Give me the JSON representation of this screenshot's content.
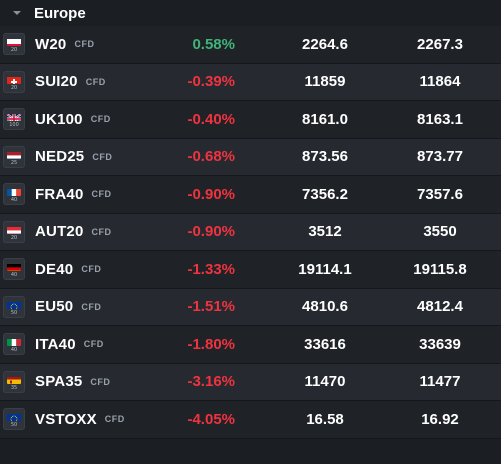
{
  "header": {
    "region": "Europe"
  },
  "rows": [
    {
      "symbol": "W20",
      "type": "CFD",
      "change": "0.58%",
      "direction": "up",
      "bid": "2264.6",
      "ask": "2267.3",
      "flag": "poland",
      "flag_num": "20"
    },
    {
      "symbol": "SUI20",
      "type": "CFD",
      "change": "-0.39%",
      "direction": "down",
      "bid": "11859",
      "ask": "11864",
      "flag": "switzerland",
      "flag_num": "20"
    },
    {
      "symbol": "UK100",
      "type": "CFD",
      "change": "-0.40%",
      "direction": "down",
      "bid": "8161.0",
      "ask": "8163.1",
      "flag": "uk",
      "flag_num": "100"
    },
    {
      "symbol": "NED25",
      "type": "CFD",
      "change": "-0.68%",
      "direction": "down",
      "bid": "873.56",
      "ask": "873.77",
      "flag": "netherlands",
      "flag_num": "25"
    },
    {
      "symbol": "FRA40",
      "type": "CFD",
      "change": "-0.90%",
      "direction": "down",
      "bid": "7356.2",
      "ask": "7357.6",
      "flag": "france",
      "flag_num": "40"
    },
    {
      "symbol": "AUT20",
      "type": "CFD",
      "change": "-0.90%",
      "direction": "down",
      "bid": "3512",
      "ask": "3550",
      "flag": "austria",
      "flag_num": "20"
    },
    {
      "symbol": "DE40",
      "type": "CFD",
      "change": "-1.33%",
      "direction": "down",
      "bid": "19114.1",
      "ask": "19115.8",
      "flag": "germany",
      "flag_num": "40"
    },
    {
      "symbol": "EU50",
      "type": "CFD",
      "change": "-1.51%",
      "direction": "down",
      "bid": "4810.6",
      "ask": "4812.4",
      "flag": "eu",
      "flag_num": "50"
    },
    {
      "symbol": "ITA40",
      "type": "CFD",
      "change": "-1.80%",
      "direction": "down",
      "bid": "33616",
      "ask": "33639",
      "flag": "italy",
      "flag_num": "40"
    },
    {
      "symbol": "SPA35",
      "type": "CFD",
      "change": "-3.16%",
      "direction": "down",
      "bid": "11470",
      "ask": "11477",
      "flag": "spain",
      "flag_num": "35"
    },
    {
      "symbol": "VSTOXX",
      "type": "CFD",
      "change": "-4.05%",
      "direction": "down",
      "bid": "16.58",
      "ask": "16.92",
      "flag": "eu",
      "flag_num": "50"
    }
  ],
  "colors": {
    "positive": "#3fb57a",
    "negative": "#f0333f",
    "background": "#1b1e23",
    "row_alt": "#262a30"
  },
  "icons": {
    "collapse": "chevron-down-icon"
  }
}
